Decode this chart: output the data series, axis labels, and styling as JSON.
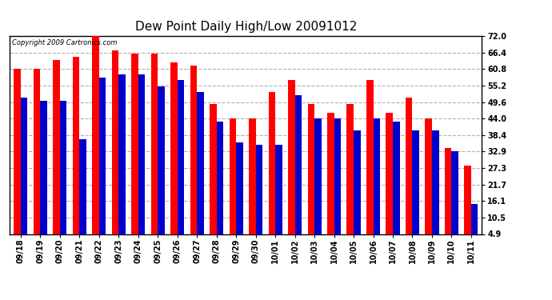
{
  "title": "Dew Point Daily High/Low 20091012",
  "copyright": "Copyright 2009 Cartronics.com",
  "dates": [
    "09/18",
    "09/19",
    "09/20",
    "09/21",
    "09/22",
    "09/23",
    "09/24",
    "09/25",
    "09/26",
    "09/27",
    "09/28",
    "09/29",
    "09/30",
    "10/01",
    "10/02",
    "10/03",
    "10/04",
    "10/05",
    "10/06",
    "10/07",
    "10/08",
    "10/09",
    "10/10",
    "10/11"
  ],
  "highs": [
    61.0,
    61.0,
    64.0,
    65.0,
    72.0,
    67.0,
    66.0,
    66.0,
    63.0,
    62.0,
    49.0,
    44.0,
    44.0,
    53.0,
    57.0,
    49.0,
    46.0,
    49.0,
    57.0,
    46.0,
    51.0,
    44.0,
    34.0,
    28.0
  ],
  "lows": [
    51.0,
    50.0,
    50.0,
    37.0,
    58.0,
    59.0,
    59.0,
    55.0,
    57.0,
    53.0,
    43.0,
    36.0,
    35.0,
    35.0,
    52.0,
    44.0,
    44.0,
    40.0,
    44.0,
    43.0,
    40.0,
    40.0,
    33.0,
    15.0
  ],
  "ymin": 4.9,
  "ymax": 72.0,
  "yticks": [
    4.9,
    10.5,
    16.1,
    21.7,
    27.3,
    32.9,
    38.4,
    44.0,
    49.6,
    55.2,
    60.8,
    66.4,
    72.0
  ],
  "high_color": "#ff0000",
  "low_color": "#0000cc",
  "bg_color": "#ffffff",
  "grid_color": "#b0b0b0",
  "bar_width": 0.35,
  "title_fontsize": 11,
  "tick_fontsize": 7,
  "copyright_fontsize": 6
}
